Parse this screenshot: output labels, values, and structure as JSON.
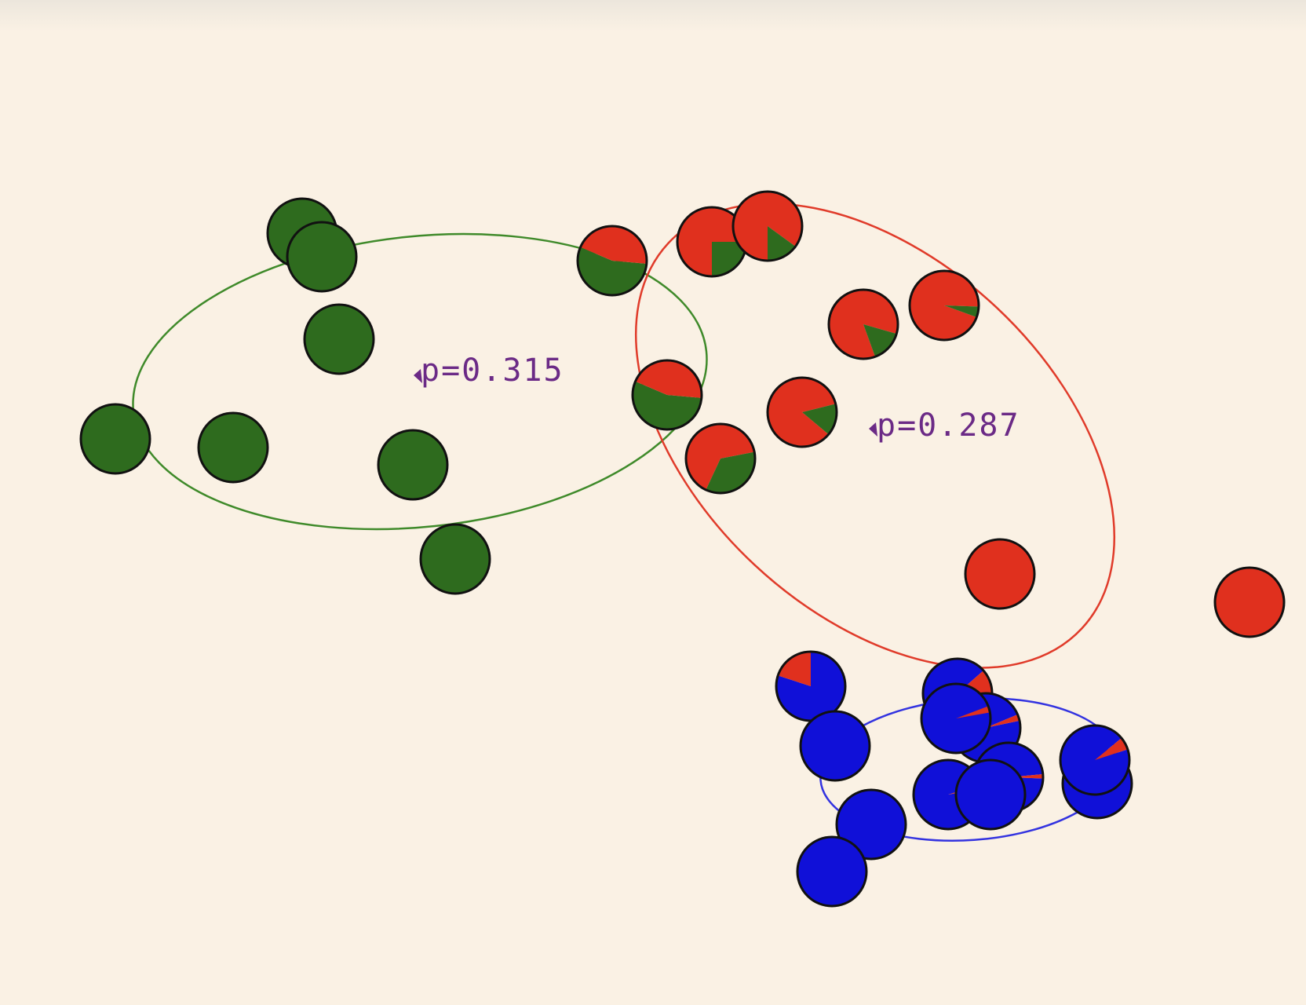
{
  "colors": {
    "background": "#faf1e4",
    "green": "#2e6b1e",
    "red": "#e0301e",
    "blue": "#1010d8",
    "outline": "#111111",
    "label": "#6b2a86"
  },
  "clusters": [
    {
      "id": "green",
      "color": "#2e6b1e",
      "label": "p=0.315",
      "ellipse_color": "#3f8a2a"
    },
    {
      "id": "red",
      "color": "#e0301e",
      "label": "p=0.287",
      "ellipse_color": "#e03b2a"
    },
    {
      "id": "blue",
      "color": "#1010d8",
      "label": "",
      "ellipse_color": "#3333e0"
    }
  ],
  "points": [
    {
      "dominant": "green",
      "mix": {
        "green": 1.0
      }
    },
    {
      "dominant": "green",
      "mix": {
        "green": 1.0
      }
    },
    {
      "dominant": "green",
      "mix": {
        "green": 1.0
      }
    },
    {
      "dominant": "green",
      "mix": {
        "green": 1.0
      }
    },
    {
      "dominant": "green",
      "mix": {
        "green": 1.0
      }
    },
    {
      "dominant": "green",
      "mix": {
        "green": 1.0
      }
    },
    {
      "dominant": "green",
      "mix": {
        "green": 1.0
      }
    },
    {
      "dominant": "green",
      "mix": {
        "green": 0.55,
        "red": 0.45
      }
    },
    {
      "dominant": "green",
      "mix": {
        "green": 0.55,
        "red": 0.45
      }
    },
    {
      "dominant": "red",
      "mix": {
        "red": 0.75,
        "green": 0.25
      }
    },
    {
      "dominant": "red",
      "mix": {
        "red": 0.85,
        "green": 0.15
      }
    },
    {
      "dominant": "red",
      "mix": {
        "red": 0.85,
        "green": 0.15
      }
    },
    {
      "dominant": "red",
      "mix": {
        "red": 0.95,
        "green": 0.05
      }
    },
    {
      "dominant": "red",
      "mix": {
        "red": 0.85,
        "green": 0.15
      }
    },
    {
      "dominant": "red",
      "mix": {
        "red": 0.65,
        "green": 0.35
      }
    },
    {
      "dominant": "red",
      "mix": {
        "red": 1.0
      }
    },
    {
      "dominant": "red",
      "mix": {
        "red": 1.0
      }
    },
    {
      "dominant": "blue",
      "mix": {
        "blue": 0.8,
        "red": 0.2
      }
    },
    {
      "dominant": "blue",
      "mix": {
        "blue": 0.88,
        "red": 0.12
      }
    },
    {
      "dominant": "blue",
      "mix": {
        "blue": 0.97,
        "red": 0.03
      }
    },
    {
      "dominant": "blue",
      "mix": {
        "blue": 0.97,
        "red": 0.03
      }
    },
    {
      "dominant": "blue",
      "mix": {
        "blue": 0.98,
        "red": 0.02
      }
    },
    {
      "dominant": "blue",
      "mix": {
        "blue": 1.0
      }
    },
    {
      "dominant": "blue",
      "mix": {
        "blue": 1.0
      }
    },
    {
      "dominant": "blue",
      "mix": {
        "blue": 0.98,
        "red": 0.02
      }
    },
    {
      "dominant": "blue",
      "mix": {
        "blue": 0.96,
        "red": 0.04
      }
    },
    {
      "dominant": "blue",
      "mix": {
        "blue": 0.94,
        "red": 0.06
      }
    },
    {
      "dominant": "blue",
      "mix": {
        "blue": 1.0
      }
    },
    {
      "dominant": "blue",
      "mix": {
        "blue": 1.0
      }
    }
  ]
}
